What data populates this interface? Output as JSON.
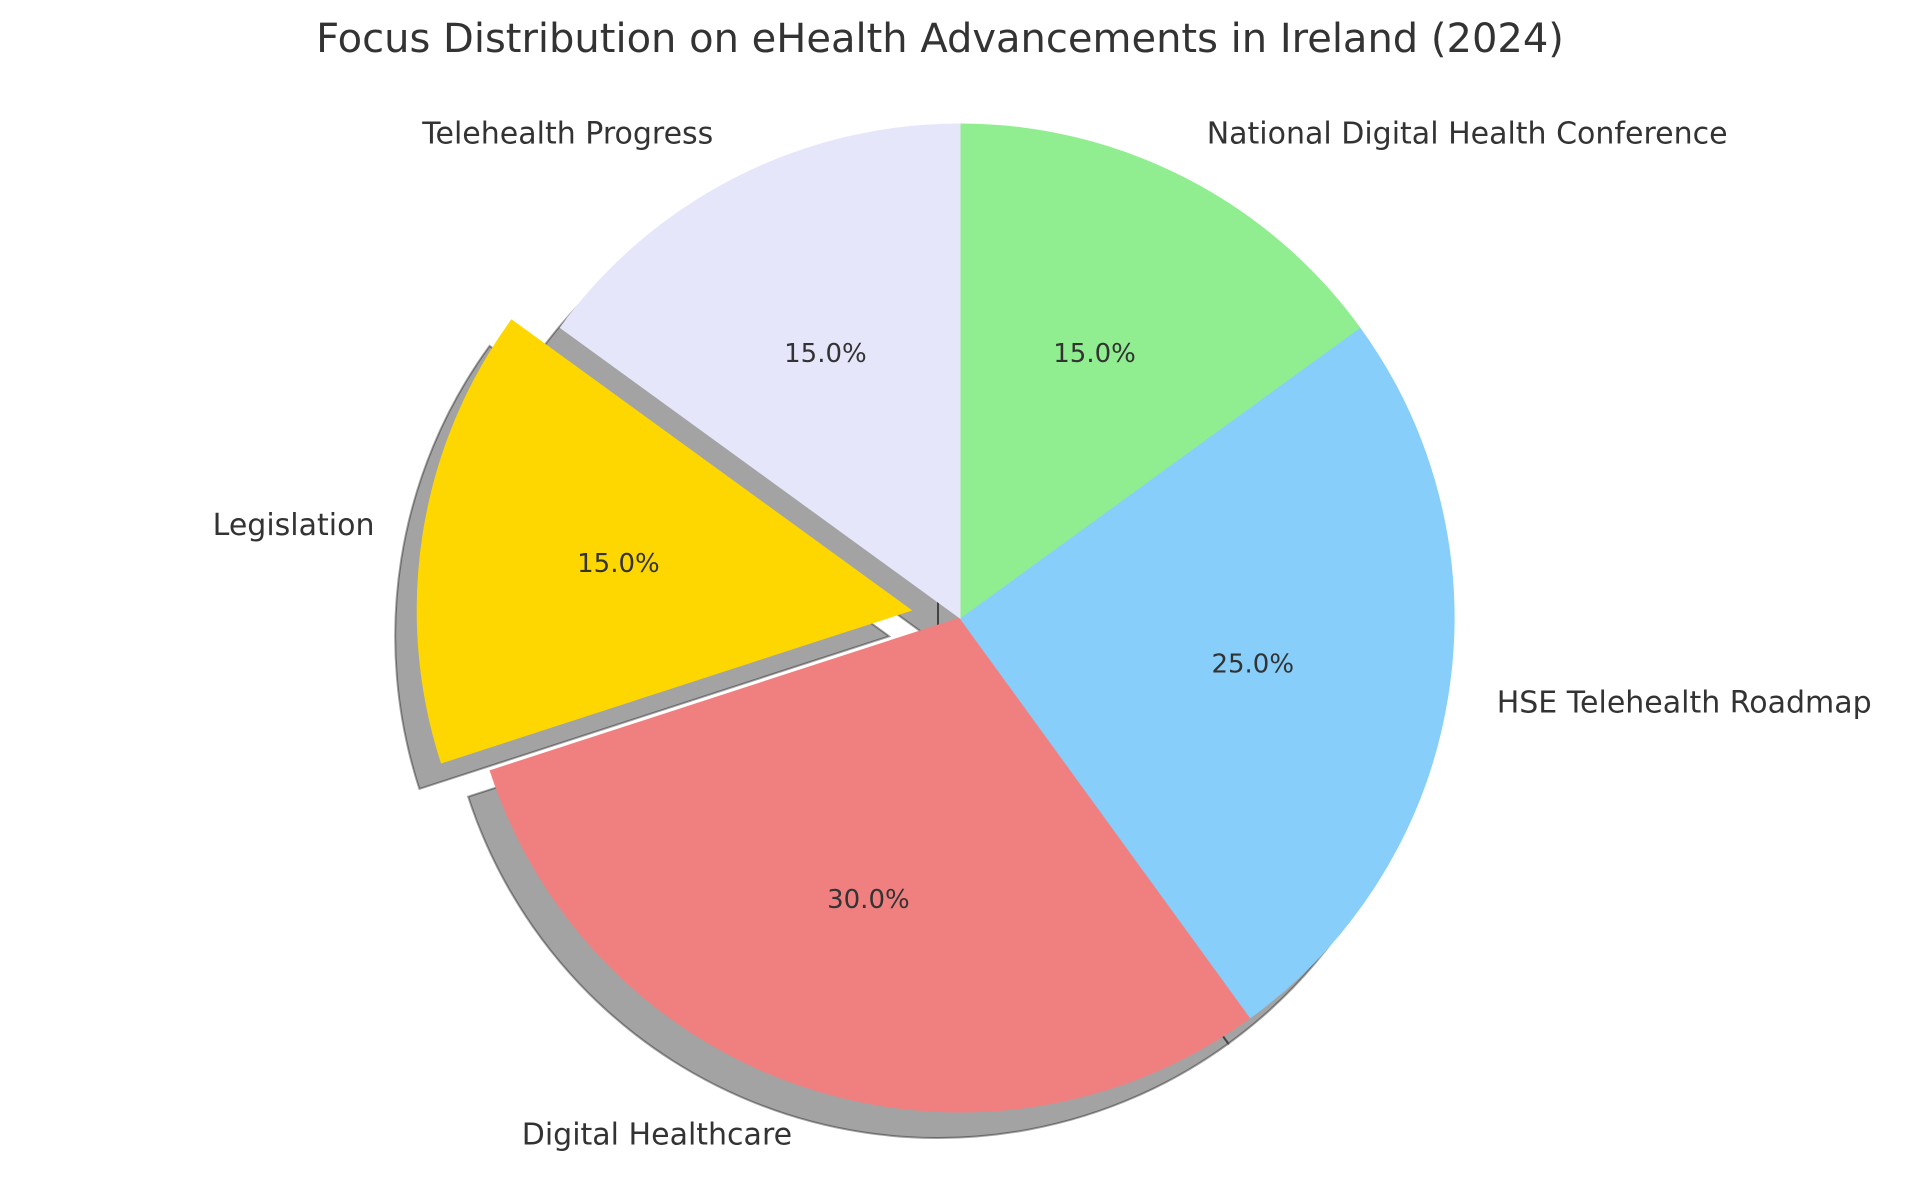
{
  "chart_data": {
    "type": "pie",
    "title": "Focus Distribution on eHealth Advancements in Ireland (2024)",
    "slices": [
      {
        "label": "Digital Healthcare",
        "value": 30.0,
        "pct_label": "30.0%",
        "color": "#F08080",
        "explode": false
      },
      {
        "label": "HSE Telehealth Roadmap",
        "value": 25.0,
        "pct_label": "25.0%",
        "color": "#87CEFA",
        "explode": false
      },
      {
        "label": "National Digital Health Conference",
        "value": 15.0,
        "pct_label": "15.0%",
        "color": "#90EE90",
        "explode": false
      },
      {
        "label": "Telehealth Progress",
        "value": 15.0,
        "pct_label": "15.0%",
        "color": "#E6E6FA",
        "explode": false
      },
      {
        "label": "Legislation",
        "value": 15.0,
        "pct_label": "15.0%",
        "color": "#FFD700",
        "explode": true
      }
    ],
    "start_angle_deg": 198,
    "shadow": true,
    "label_color": "#333333",
    "background": "#ffffff"
  }
}
